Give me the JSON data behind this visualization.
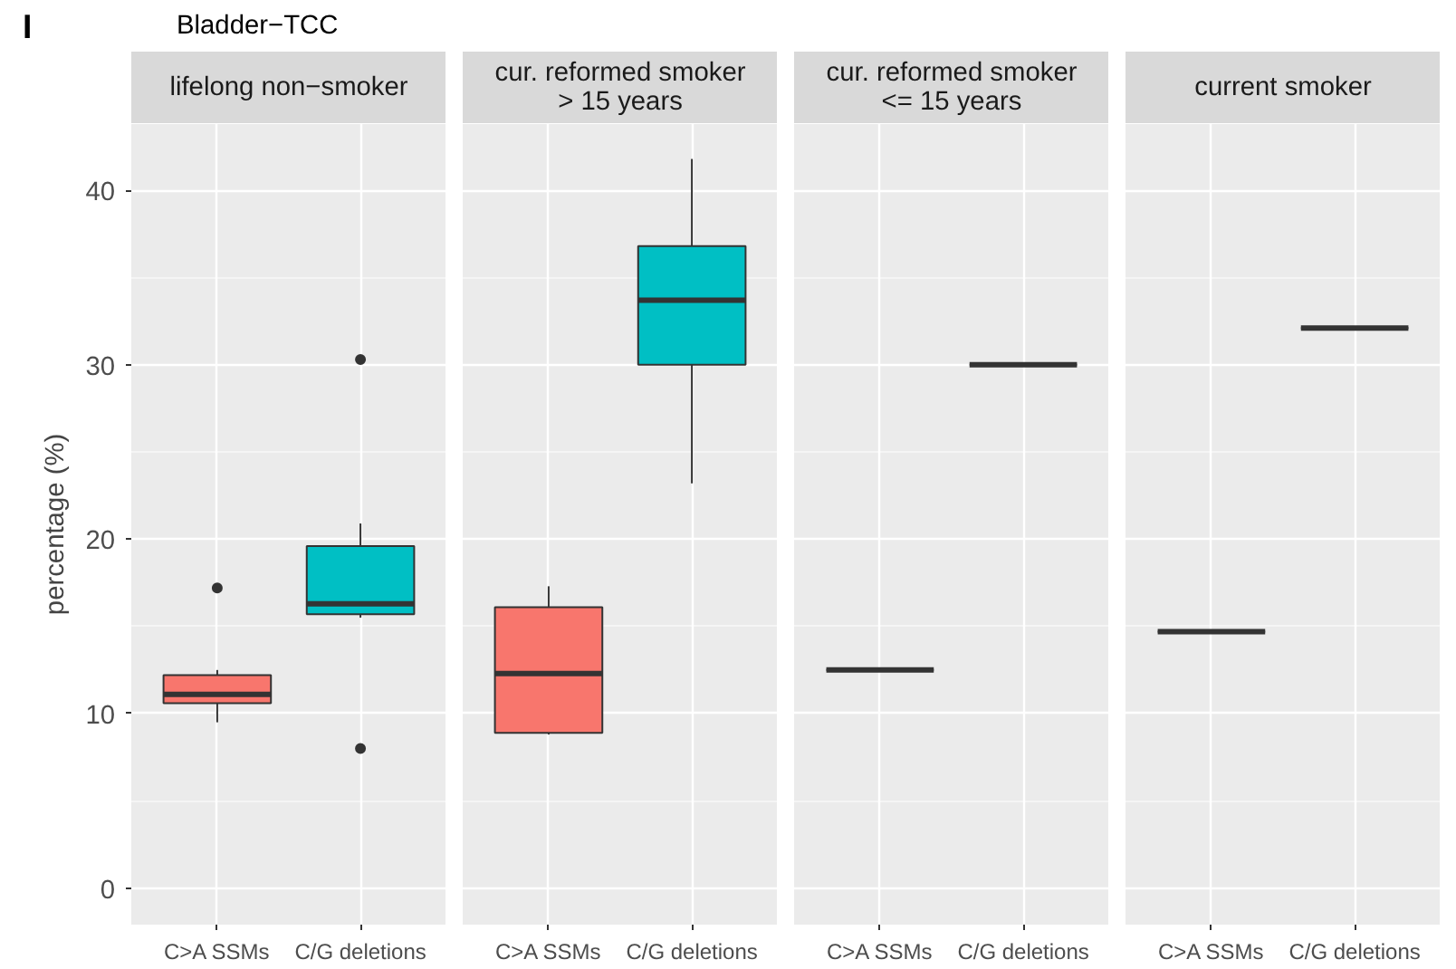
{
  "chart_data": [
    {
      "type": "box",
      "title": "Bladder−TCC",
      "annotations": [
        "I"
      ],
      "subtitle": "lifelong non−smoker",
      "ylabel": "percentage (%)",
      "categories": [
        "C>A SSMs",
        "C/G deletions"
      ],
      "colors": [
        "#f8766d",
        "#00bfc4"
      ],
      "boxes": [
        {
          "low": 9.5,
          "q1": 10.6,
          "median": 11.1,
          "q3": 12.2,
          "high": 12.5,
          "outliers": [
            17.2
          ]
        },
        {
          "low": 15.5,
          "q1": 15.7,
          "median": 16.3,
          "q3": 19.6,
          "high": 20.9,
          "outliers": [
            30.3,
            8.0
          ]
        }
      ],
      "ylim": [
        -2.1,
        43.8
      ],
      "yticks": [
        0,
        10,
        20,
        30,
        40
      ],
      "grid": true
    },
    {
      "type": "box",
      "subtitle": "cur. reformed smoker\n> 15 years",
      "categories": [
        "C>A SSMs",
        "C/G deletions"
      ],
      "colors": [
        "#f8766d",
        "#00bfc4"
      ],
      "boxes": [
        {
          "low": 8.8,
          "q1": 8.9,
          "median": 12.3,
          "q3": 16.1,
          "high": 17.3
        },
        {
          "low": 23.2,
          "q1": 30.0,
          "median": 33.7,
          "q3": 36.8,
          "high": 41.8
        }
      ],
      "ylim": [
        -2.1,
        43.8
      ],
      "yticks": [
        0,
        10,
        20,
        30,
        40
      ],
      "grid": true,
      "tick_labels": "x"
    },
    {
      "type": "box",
      "subtitle": "cur. reformed smoker\n<= 15 years",
      "categories": [
        "C>A SSMs",
        "C/G deletions"
      ],
      "boxes": [
        {
          "low": 12.5,
          "q1": 12.5,
          "median": 12.5,
          "q3": 12.5,
          "high": 12.5
        },
        {
          "low": 30.0,
          "q1": 30.0,
          "median": 30.0,
          "q3": 30.0,
          "high": 30.0
        }
      ],
      "ylim": [
        -2.1,
        43.8
      ],
      "yticks": [
        0,
        10,
        20,
        30,
        40
      ],
      "grid": true,
      "tick_labels": "x"
    },
    {
      "type": "box",
      "subtitle": "current smoker",
      "categories": [
        "C>A SSMs",
        "C/G deletions"
      ],
      "boxes": [
        {
          "low": 14.7,
          "q1": 14.7,
          "median": 14.7,
          "q3": 14.7,
          "high": 14.7
        },
        {
          "low": 32.1,
          "q1": 32.1,
          "median": 32.1,
          "q3": 32.1,
          "high": 32.1
        }
      ],
      "ylim": [
        -2.1,
        43.8
      ],
      "yticks": [
        0,
        10,
        20,
        30,
        40
      ],
      "grid": true,
      "tick_labels": "x"
    }
  ]
}
